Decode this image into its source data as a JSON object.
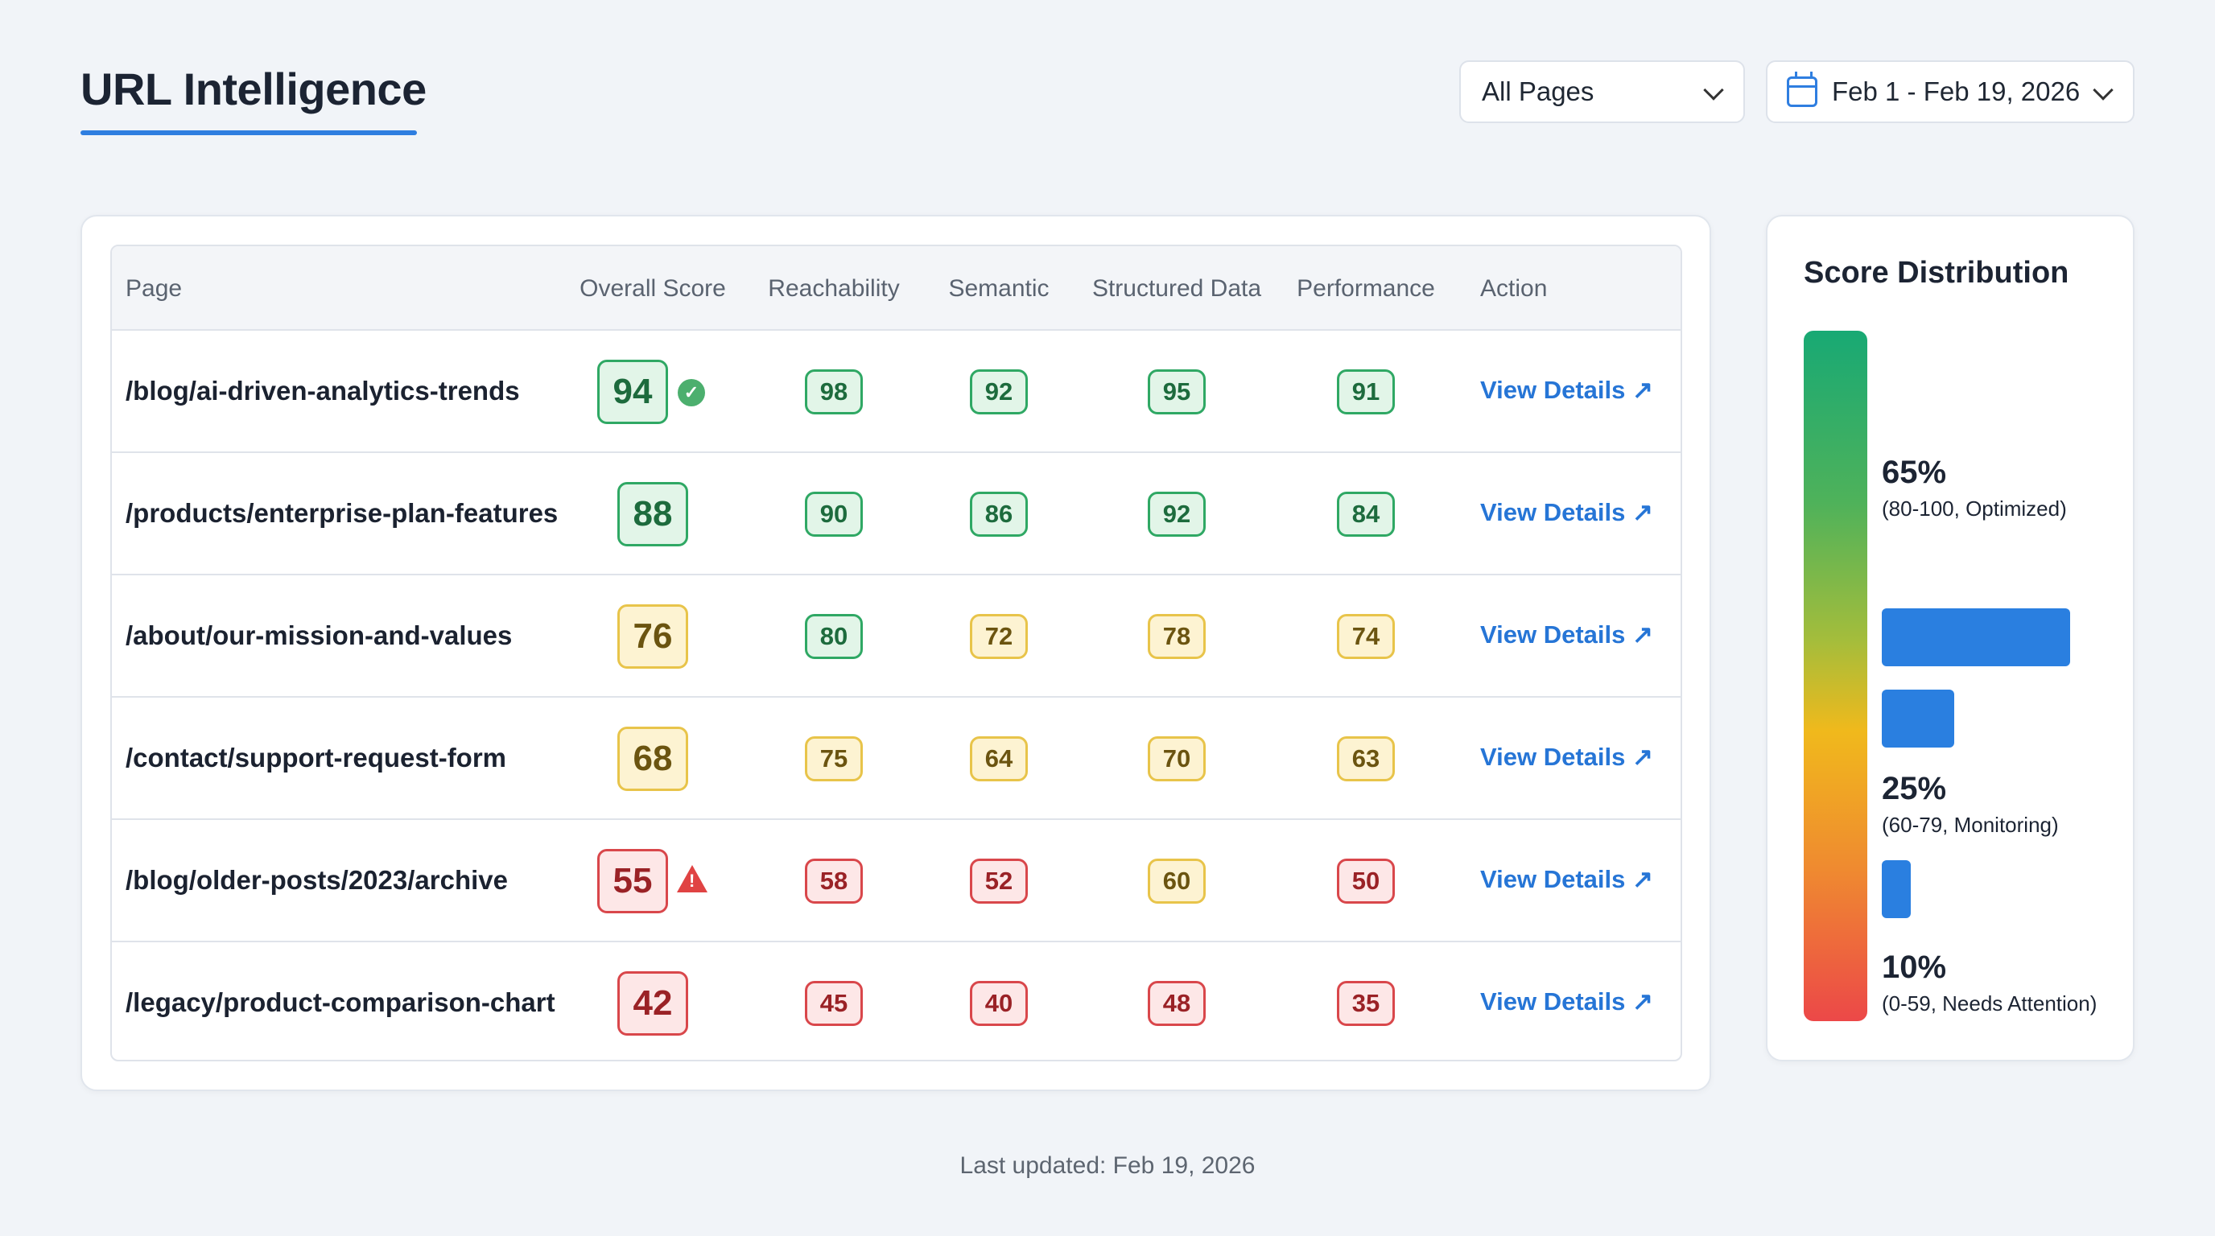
{
  "header": {
    "title": "URL Intelligence",
    "page_filter": "All Pages",
    "date_range": "Feb 1 - Feb 19, 2026"
  },
  "table": {
    "columns": [
      "Page",
      "Overall Score",
      "Reachability",
      "Semantic",
      "Structured Data",
      "Performance",
      "Action"
    ],
    "rows": [
      {
        "page": "/blog/ai-driven-analytics-trends",
        "overall": 94,
        "reachability": 98,
        "semantic": 92,
        "structured_data": 95,
        "performance": 91,
        "action": "View Details ↗",
        "status_icon": "check-circle-icon"
      },
      {
        "page": "/products/enterprise-plan-features",
        "overall": 88,
        "reachability": 90,
        "semantic": 86,
        "structured_data": 92,
        "performance": 84,
        "action": "View Details ↗"
      },
      {
        "page": "/about/our-mission-and-values",
        "overall": 76,
        "reachability": 80,
        "semantic": 72,
        "structured_data": 78,
        "performance": 74,
        "action": "View Details ↗"
      },
      {
        "page": "/contact/support-request-form",
        "overall": 68,
        "reachability": 75,
        "semantic": 64,
        "structured_data": 70,
        "performance": 63,
        "action": "View Details ↗"
      },
      {
        "page": "/blog/older-posts/2023/archive",
        "overall": 55,
        "reachability": 58,
        "semantic": 52,
        "structured_data": 60,
        "performance": 50,
        "action": "View Details ↗",
        "status_icon": "warning-icon"
      },
      {
        "page": "/legacy/product-comparison-chart",
        "overall": 42,
        "reachability": 45,
        "semantic": 40,
        "structured_data": 48,
        "performance": 35,
        "action": "View Details ↗"
      }
    ]
  },
  "distribution": {
    "title": "Score Distribution",
    "bands": [
      {
        "percent": 65,
        "label": "65%",
        "range": "(80-100, Optimized)"
      },
      {
        "percent": 25,
        "label": "25%",
        "range": "(60-79, Monitoring)"
      },
      {
        "percent": 10,
        "label": "10%",
        "range": "(0-59, Needs Attention)"
      }
    ]
  },
  "colors": {
    "accent": "#2f7ee0",
    "good": "#2fa864",
    "warn": "#e8c44a",
    "bad": "#d9474b",
    "bar": "#2a7fe0"
  },
  "footer": "Last updated: Feb 19, 2026"
}
